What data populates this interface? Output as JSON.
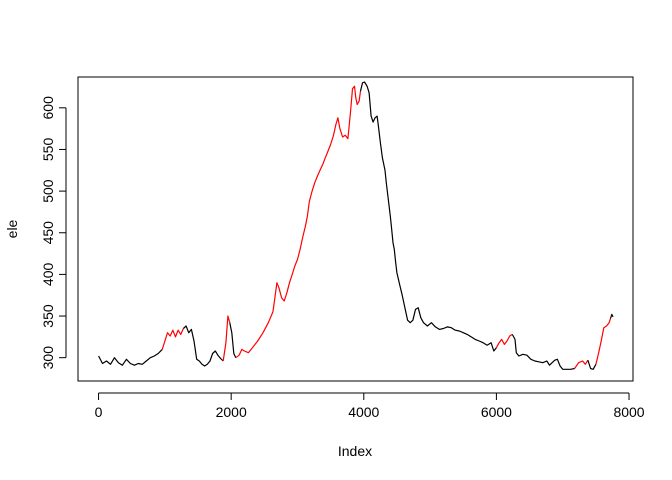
{
  "chart_data": {
    "type": "line",
    "title": "",
    "xlabel": "Index",
    "ylabel": "ele",
    "xlim": [
      -310,
      8060
    ],
    "ylim": [
      272,
      637
    ],
    "x_ticks": [
      0,
      2000,
      4000,
      6000,
      8000
    ],
    "x_tick_labels": [
      "0",
      "2000",
      "4000",
      "6000",
      "8000"
    ],
    "y_ticks": [
      300,
      350,
      400,
      450,
      500,
      550,
      600
    ],
    "y_tick_labels": [
      "300",
      "350",
      "400",
      "450",
      "500",
      "550",
      "600"
    ],
    "grid": false,
    "legend": "none",
    "colors": {
      "black": "#000000",
      "red": "#ff0000"
    },
    "segments": [
      {
        "color": "black",
        "points": [
          [
            0,
            302
          ],
          [
            60,
            293
          ],
          [
            120,
            296
          ],
          [
            180,
            292
          ],
          [
            240,
            300
          ],
          [
            300,
            294
          ],
          [
            360,
            291
          ],
          [
            420,
            298
          ],
          [
            480,
            293
          ],
          [
            540,
            291
          ],
          [
            600,
            293
          ],
          [
            660,
            292
          ],
          [
            720,
            296
          ],
          [
            780,
            300
          ],
          [
            840,
            302
          ],
          [
            900,
            305
          ],
          [
            960,
            310
          ]
        ]
      },
      {
        "color": "red",
        "points": [
          [
            960,
            310
          ],
          [
            1000,
            320
          ],
          [
            1040,
            330
          ],
          [
            1080,
            326
          ],
          [
            1120,
            333
          ],
          [
            1160,
            325
          ],
          [
            1200,
            333
          ],
          [
            1240,
            328
          ],
          [
            1280,
            335
          ]
        ]
      },
      {
        "color": "black",
        "points": [
          [
            1280,
            335
          ],
          [
            1320,
            338
          ],
          [
            1360,
            330
          ],
          [
            1400,
            334
          ],
          [
            1440,
            320
          ],
          [
            1480,
            298
          ],
          [
            1520,
            296
          ],
          [
            1560,
            292
          ],
          [
            1600,
            290
          ],
          [
            1640,
            292
          ],
          [
            1680,
            296
          ],
          [
            1720,
            305
          ],
          [
            1760,
            308
          ],
          [
            1800,
            303
          ],
          [
            1840,
            299
          ],
          [
            1880,
            296
          ]
        ]
      },
      {
        "color": "red",
        "points": [
          [
            1880,
            296
          ],
          [
            1920,
            318
          ],
          [
            1950,
            350
          ],
          [
            1980,
            342
          ]
        ]
      },
      {
        "color": "black",
        "points": [
          [
            1980,
            342
          ],
          [
            2010,
            330
          ],
          [
            2040,
            305
          ],
          [
            2070,
            300
          ]
        ]
      },
      {
        "color": "red",
        "points": [
          [
            2070,
            300
          ],
          [
            2120,
            303
          ],
          [
            2160,
            310
          ],
          [
            2200,
            308
          ],
          [
            2260,
            306
          ],
          [
            2320,
            312
          ],
          [
            2400,
            320
          ],
          [
            2480,
            330
          ],
          [
            2560,
            342
          ],
          [
            2630,
            355
          ],
          [
            2660,
            372
          ],
          [
            2690,
            390
          ],
          [
            2720,
            384
          ],
          [
            2760,
            372
          ],
          [
            2800,
            368
          ],
          [
            2840,
            378
          ],
          [
            2880,
            390
          ],
          [
            2920,
            400
          ],
          [
            2960,
            410
          ],
          [
            3000,
            418
          ],
          [
            3040,
            430
          ],
          [
            3080,
            445
          ],
          [
            3120,
            458
          ],
          [
            3150,
            470
          ],
          [
            3180,
            488
          ],
          [
            3220,
            500
          ],
          [
            3260,
            510
          ],
          [
            3300,
            518
          ],
          [
            3340,
            525
          ],
          [
            3380,
            532
          ],
          [
            3420,
            540
          ],
          [
            3460,
            548
          ],
          [
            3500,
            556
          ],
          [
            3540,
            566
          ],
          [
            3580,
            580
          ],
          [
            3610,
            588
          ],
          [
            3640,
            575
          ],
          [
            3680,
            565
          ],
          [
            3720,
            567
          ],
          [
            3760,
            563
          ],
          [
            3800,
            595
          ],
          [
            3830,
            623
          ],
          [
            3860,
            626
          ],
          [
            3880,
            612
          ],
          [
            3900,
            604
          ],
          [
            3930,
            608
          ],
          [
            3950,
            620
          ]
        ]
      },
      {
        "color": "black",
        "points": [
          [
            3950,
            620
          ],
          [
            3980,
            630
          ],
          [
            4010,
            631
          ],
          [
            4050,
            626
          ],
          [
            4080,
            618
          ],
          [
            4110,
            590
          ],
          [
            4140,
            583
          ],
          [
            4170,
            588
          ],
          [
            4200,
            590
          ],
          [
            4220,
            578
          ],
          [
            4250,
            558
          ],
          [
            4280,
            540
          ],
          [
            4320,
            525
          ],
          [
            4340,
            510
          ],
          [
            4370,
            490
          ],
          [
            4400,
            470
          ],
          [
            4420,
            455
          ],
          [
            4440,
            438
          ],
          [
            4460,
            430
          ],
          [
            4480,
            415
          ],
          [
            4500,
            402
          ],
          [
            4540,
            388
          ],
          [
            4580,
            375
          ],
          [
            4620,
            360
          ],
          [
            4660,
            345
          ],
          [
            4700,
            342
          ],
          [
            4740,
            345
          ],
          [
            4780,
            358
          ],
          [
            4820,
            360
          ],
          [
            4860,
            348
          ],
          [
            4900,
            342
          ],
          [
            4960,
            338
          ],
          [
            5020,
            342
          ],
          [
            5080,
            337
          ],
          [
            5140,
            334
          ],
          [
            5200,
            335
          ],
          [
            5260,
            337
          ],
          [
            5320,
            336
          ],
          [
            5380,
            333
          ],
          [
            5440,
            332
          ],
          [
            5500,
            330
          ],
          [
            5560,
            328
          ],
          [
            5620,
            325
          ],
          [
            5680,
            322
          ],
          [
            5740,
            320
          ],
          [
            5800,
            318
          ],
          [
            5860,
            315
          ],
          [
            5920,
            318
          ],
          [
            5960,
            308
          ],
          [
            6000,
            312
          ]
        ]
      },
      {
        "color": "red",
        "points": [
          [
            6000,
            312
          ],
          [
            6040,
            318
          ],
          [
            6080,
            322
          ],
          [
            6120,
            316
          ],
          [
            6160,
            320
          ],
          [
            6200,
            326
          ],
          [
            6240,
            328
          ]
        ]
      },
      {
        "color": "black",
        "points": [
          [
            6240,
            328
          ],
          [
            6280,
            322
          ],
          [
            6300,
            306
          ],
          [
            6340,
            302
          ],
          [
            6400,
            304
          ],
          [
            6460,
            303
          ],
          [
            6520,
            298
          ],
          [
            6580,
            296
          ],
          [
            6640,
            295
          ],
          [
            6700,
            294
          ],
          [
            6760,
            296
          ],
          [
            6800,
            291
          ],
          [
            6840,
            294
          ],
          [
            6880,
            297
          ],
          [
            6920,
            298
          ],
          [
            6960,
            290
          ],
          [
            7000,
            286
          ],
          [
            7060,
            286
          ],
          [
            7120,
            286
          ],
          [
            7180,
            287
          ]
        ]
      },
      {
        "color": "red",
        "points": [
          [
            7180,
            287
          ],
          [
            7240,
            294
          ],
          [
            7300,
            296
          ],
          [
            7340,
            292
          ],
          [
            7380,
            297
          ]
        ]
      },
      {
        "color": "black",
        "points": [
          [
            7380,
            297
          ],
          [
            7420,
            287
          ],
          [
            7460,
            286
          ],
          [
            7500,
            292
          ]
        ]
      },
      {
        "color": "red",
        "points": [
          [
            7500,
            292
          ],
          [
            7540,
            305
          ],
          [
            7580,
            320
          ],
          [
            7620,
            336
          ],
          [
            7660,
            338
          ],
          [
            7700,
            342
          ],
          [
            7720,
            347
          ]
        ]
      },
      {
        "color": "black",
        "points": [
          [
            7720,
            347
          ],
          [
            7740,
            352
          ],
          [
            7760,
            349
          ]
        ]
      }
    ]
  }
}
